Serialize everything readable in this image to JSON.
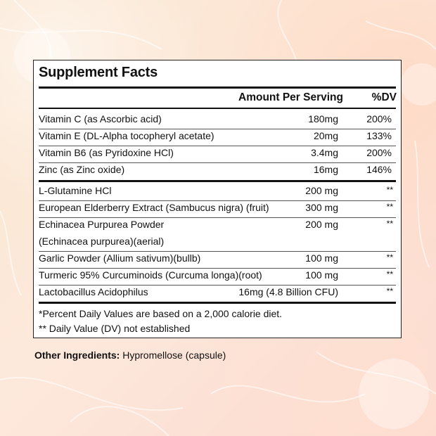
{
  "panel": {
    "title": "Supplement Facts",
    "header": {
      "amount": "Amount Per Serving",
      "dv": "%DV"
    },
    "vitamins": [
      {
        "name": "Vitamin C (as Ascorbic acid)",
        "amount": "180mg",
        "dv": "200%"
      },
      {
        "name": "Vitamin E (DL-Alpha tocopheryl acetate)",
        "amount": "20mg",
        "dv": "133%"
      },
      {
        "name": "Vitamin B6 (as Pyridoxine HCl)",
        "amount": "3.4mg",
        "dv": "200%"
      },
      {
        "name": "Zinc (as Zinc oxide)",
        "amount": "16mg",
        "dv": "146%"
      }
    ],
    "others": [
      {
        "name": "L-Glutamine HCl",
        "amount": "200 mg",
        "dv": "**"
      },
      {
        "name": "European Elderberry Extract (Sambucus nigra) (fruit)",
        "amount": "300 mg",
        "dv": "**"
      },
      {
        "name": "Echinacea Purpurea Powder",
        "name2": "(Echinacea purpurea)(aerial)",
        "amount": "200 mg",
        "dv": "**"
      },
      {
        "name": "Garlic Powder (Allium sativum)(bullb)",
        "amount": "100 mg",
        "dv": "**"
      },
      {
        "name": "Turmeric 95% Curcuminoids (Curcuma longa)(root)",
        "amount": "100 mg",
        "dv": "**"
      },
      {
        "name": "Lactobacillus Acidophilus",
        "amount": "16mg (4.8 Billion CFU)",
        "dv": "**"
      }
    ],
    "footnote1": "*Percent Daily Values are based on a 2,000 calorie diet.",
    "footnote2": "** Daily Value (DV) not established"
  },
  "other_ingredients": {
    "label": "Other Ingredients:",
    "value": " Hypromellose (capsule)"
  }
}
